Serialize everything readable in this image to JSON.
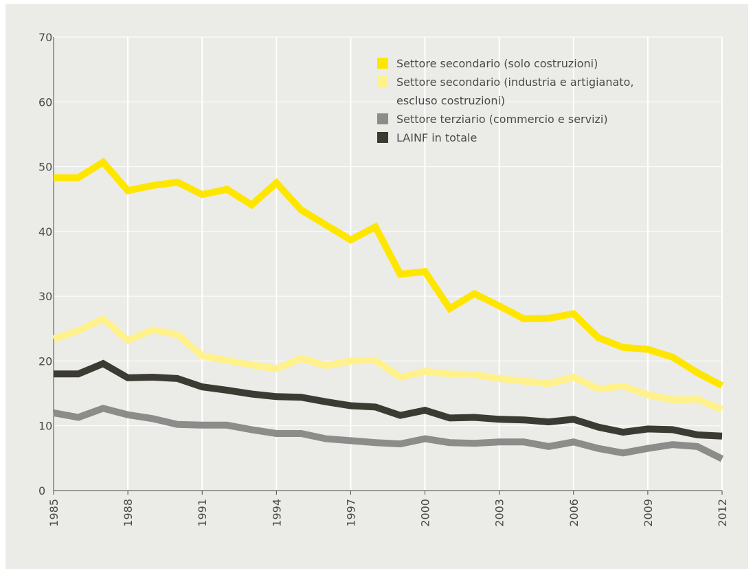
{
  "chart_data": {
    "type": "line",
    "title": "",
    "xlabel": "",
    "ylabel": "",
    "x": [
      1985,
      1986,
      1987,
      1988,
      1989,
      1990,
      1991,
      1992,
      1993,
      1994,
      1995,
      1996,
      1997,
      1998,
      1999,
      2000,
      2001,
      2002,
      2003,
      2004,
      2005,
      2006,
      2007,
      2008,
      2009,
      2010,
      2011,
      2012
    ],
    "x_tick_labels": [
      "1985",
      "1988",
      "1991",
      "1994",
      "1997",
      "2000",
      "2003",
      "2006",
      "2009",
      "2012"
    ],
    "y_tick_labels": [
      "0",
      "10",
      "20",
      "30",
      "40",
      "50",
      "60",
      "70"
    ],
    "xlim": [
      1985,
      2012
    ],
    "ylim": [
      0,
      70
    ],
    "grid": true,
    "legend_position": "top-right",
    "series": [
      {
        "name": "Settore secondario (solo costruzioni)",
        "color": "#ffe600",
        "values": [
          48.3,
          48.3,
          50.7,
          46.3,
          47.1,
          47.6,
          45.7,
          46.5,
          44.1,
          47.5,
          43.3,
          41.0,
          38.7,
          40.7,
          33.4,
          33.8,
          28.1,
          30.4,
          28.5,
          26.5,
          26.6,
          27.3,
          23.6,
          22.1,
          21.8,
          20.6,
          18.2,
          16.2
        ]
      },
      {
        "name": "Settore secondario (industria e artigianato, escluso costruzioni)",
        "legend_lines": [
          "Settore secondario (industria e artigianato,",
          "escluso costruzioni)"
        ],
        "color": "#fff28c",
        "values": [
          23.4,
          24.7,
          26.5,
          23.2,
          24.8,
          24.1,
          20.8,
          20.1,
          19.4,
          18.8,
          20.4,
          19.3,
          20.0,
          20.1,
          17.5,
          18.4,
          18.0,
          17.9,
          17.3,
          16.9,
          16.5,
          17.5,
          15.7,
          16.1,
          14.8,
          14.0,
          14.1,
          12.5
        ]
      },
      {
        "name": "Settore terziario (commercio e servizi)",
        "color": "#8c8c8a",
        "values": [
          12.0,
          11.3,
          12.7,
          11.7,
          11.1,
          10.2,
          10.1,
          10.1,
          9.4,
          8.8,
          8.8,
          8.0,
          7.7,
          7.4,
          7.2,
          8.0,
          7.4,
          7.3,
          7.5,
          7.5,
          6.8,
          7.5,
          6.5,
          5.8,
          6.5,
          7.1,
          6.8,
          4.9
        ]
      },
      {
        "name": "LAINF in totale",
        "color": "#3c3b33",
        "values": [
          18.0,
          18.0,
          19.6,
          17.4,
          17.5,
          17.3,
          16.0,
          15.5,
          14.9,
          14.5,
          14.4,
          13.7,
          13.1,
          12.9,
          11.6,
          12.4,
          11.2,
          11.3,
          11.0,
          10.9,
          10.6,
          11.0,
          9.8,
          9.0,
          9.5,
          9.4,
          8.6,
          8.4
        ]
      }
    ]
  }
}
